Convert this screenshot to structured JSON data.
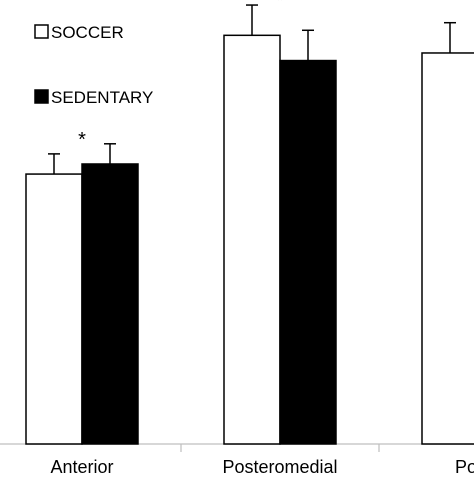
{
  "chart_data": {
    "type": "bar",
    "categories": [
      "Anterior",
      "Posteromedial",
      "Poste"
    ],
    "series": [
      {
        "name": "SOCCER",
        "color": "#ffffff",
        "values": [
          53.5,
          81,
          77.5
        ],
        "errors": [
          4,
          6,
          6
        ]
      },
      {
        "name": "SEDENTARY",
        "color": "#000000",
        "values": [
          55.5,
          76,
          null
        ],
        "errors": [
          4,
          6,
          null
        ]
      }
    ],
    "annotations": [
      "*",
      "*"
    ],
    "ylim": [
      0,
      88
    ],
    "grid": false,
    "legend": "top-left"
  }
}
